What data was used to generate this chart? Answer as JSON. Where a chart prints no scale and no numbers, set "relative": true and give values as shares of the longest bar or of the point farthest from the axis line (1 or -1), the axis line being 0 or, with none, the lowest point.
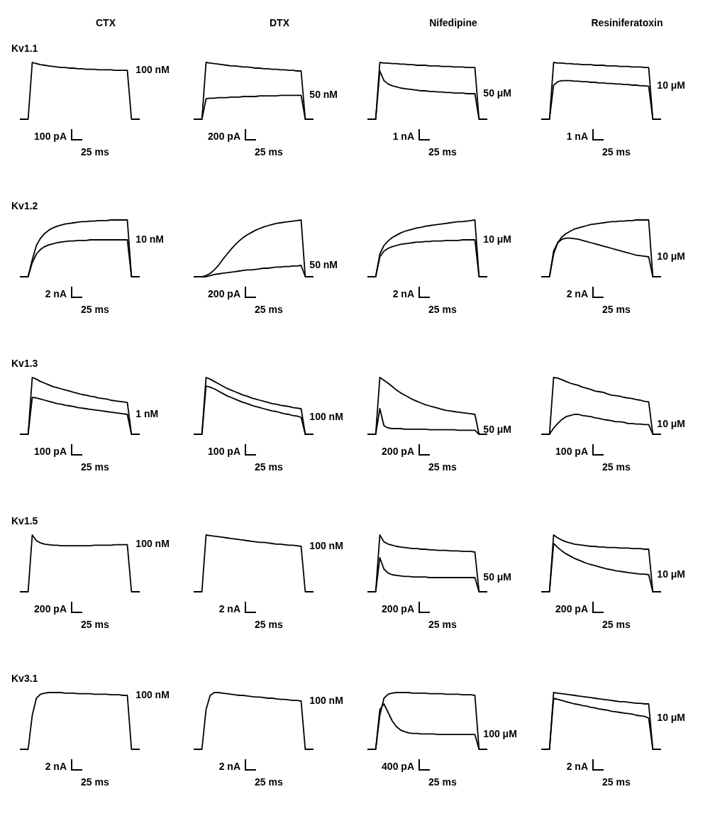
{
  "chart_data": [
    {
      "type": "line",
      "relative": true,
      "title": "CTX",
      "categories": [
        null,
        null,
        null,
        null,
        null,
        null,
        null,
        null,
        null,
        null,
        null,
        null,
        null,
        null,
        null,
        null,
        null,
        null,
        null,
        null,
        null,
        null,
        null,
        null,
        null,
        null,
        null,
        null,
        null,
        null
      ],
      "series": [
        {
          "name": "100 nM",
          "color": "#000000",
          "values": [
            0,
            0,
            0,
            1,
            0.98,
            0.96,
            0.95,
            0.94,
            0.93,
            0.92,
            0.91,
            0.91,
            0.9,
            0.9,
            0.89,
            0.89,
            0.88,
            0.88,
            0.88,
            0.87,
            0.87,
            0.87,
            0.87,
            0.86,
            0.86,
            0.86,
            0.86,
            0,
            0,
            0
          ]
        }
      ],
      "annotations": [
        "Kv1.1",
        "100 pA",
        "25 ms"
      ]
    },
    {
      "type": "line",
      "relative": true,
      "title": "DTX",
      "categories": [
        null,
        null,
        null,
        null,
        null,
        null,
        null,
        null,
        null,
        null,
        null,
        null,
        null,
        null,
        null,
        null,
        null,
        null,
        null,
        null,
        null,
        null,
        null,
        null,
        null,
        null,
        null,
        null,
        null,
        null
      ],
      "series": [
        {
          "color": "#000000",
          "values": [
            0,
            0,
            0,
            1,
            0.99,
            0.98,
            0.97,
            0.96,
            0.95,
            0.94,
            0.94,
            0.93,
            0.92,
            0.92,
            0.91,
            0.9,
            0.9,
            0.89,
            0.89,
            0.88,
            0.88,
            0.87,
            0.87,
            0.86,
            0.86,
            0.85,
            0.85,
            0,
            0,
            0
          ]
        },
        {
          "name": "50 nM",
          "color": "#000000",
          "values": [
            0,
            0,
            0,
            0.36,
            0.37,
            0.37,
            0.38,
            0.38,
            0.38,
            0.39,
            0.39,
            0.39,
            0.4,
            0.4,
            0.4,
            0.4,
            0.41,
            0.41,
            0.41,
            0.41,
            0.41,
            0.42,
            0.42,
            0.42,
            0.42,
            0.42,
            0.42,
            0,
            0,
            0
          ]
        }
      ],
      "annotations": [
        "200 pA",
        "25 ms"
      ]
    },
    {
      "type": "line",
      "relative": true,
      "title": "Nifedipine",
      "categories": [
        null,
        null,
        null,
        null,
        null,
        null,
        null,
        null,
        null,
        null,
        null,
        null,
        null,
        null,
        null,
        null,
        null,
        null,
        null,
        null,
        null,
        null,
        null,
        null,
        null,
        null,
        null,
        null,
        null,
        null
      ],
      "series": [
        {
          "color": "#000000",
          "values": [
            0,
            0,
            0,
            1,
            0.99,
            0.99,
            0.98,
            0.98,
            0.97,
            0.97,
            0.96,
            0.96,
            0.95,
            0.95,
            0.95,
            0.94,
            0.94,
            0.94,
            0.93,
            0.93,
            0.93,
            0.92,
            0.92,
            0.92,
            0.91,
            0.91,
            0.91,
            0,
            0,
            0
          ]
        },
        {
          "name": "50 μM",
          "color": "#000000",
          "values": [
            0,
            0,
            0,
            0.85,
            0.68,
            0.62,
            0.59,
            0.57,
            0.55,
            0.54,
            0.53,
            0.52,
            0.51,
            0.5,
            0.5,
            0.49,
            0.49,
            0.48,
            0.48,
            0.47,
            0.47,
            0.46,
            0.46,
            0.46,
            0.45,
            0.45,
            0.45,
            0,
            0,
            0
          ]
        }
      ],
      "annotations": [
        "1 nA",
        "25 ms"
      ]
    },
    {
      "type": "line",
      "relative": true,
      "title": "Resiniferatoxin",
      "categories": [
        null,
        null,
        null,
        null,
        null,
        null,
        null,
        null,
        null,
        null,
        null,
        null,
        null,
        null,
        null,
        null,
        null,
        null,
        null,
        null,
        null,
        null,
        null,
        null,
        null,
        null,
        null,
        null,
        null,
        null
      ],
      "series": [
        {
          "color": "#000000",
          "values": [
            0,
            0,
            0,
            1,
            0.99,
            0.99,
            0.98,
            0.98,
            0.97,
            0.97,
            0.96,
            0.96,
            0.96,
            0.95,
            0.95,
            0.95,
            0.94,
            0.94,
            0.94,
            0.93,
            0.93,
            0.93,
            0.92,
            0.92,
            0.92,
            0.91,
            0.91,
            0,
            0,
            0
          ]
        },
        {
          "name": "10 μM",
          "color": "#000000",
          "values": [
            0,
            0,
            0,
            0.6,
            0.66,
            0.68,
            0.68,
            0.68,
            0.67,
            0.67,
            0.66,
            0.66,
            0.65,
            0.65,
            0.64,
            0.64,
            0.63,
            0.63,
            0.62,
            0.62,
            0.61,
            0.61,
            0.6,
            0.6,
            0.59,
            0.59,
            0.58,
            0,
            0,
            0
          ]
        }
      ],
      "annotations": [
        "1 nA",
        "25 ms"
      ]
    },
    {
      "type": "line",
      "relative": true,
      "categories": [
        null,
        null,
        null,
        null,
        null,
        null,
        null,
        null,
        null,
        null,
        null,
        null,
        null,
        null,
        null,
        null,
        null,
        null,
        null,
        null,
        null,
        null,
        null,
        null,
        null,
        null,
        null,
        null,
        null,
        null
      ],
      "series": [
        {
          "color": "#000000",
          "values": [
            0,
            0,
            0,
            0.3,
            0.55,
            0.68,
            0.76,
            0.82,
            0.86,
            0.89,
            0.91,
            0.93,
            0.94,
            0.95,
            0.96,
            0.97,
            0.97,
            0.98,
            0.98,
            0.99,
            0.99,
            0.99,
            1,
            1,
            1,
            1,
            1,
            0,
            0,
            0
          ]
        },
        {
          "name": "10 nM",
          "color": "#000000",
          "values": [
            0,
            0,
            0,
            0.25,
            0.4,
            0.48,
            0.53,
            0.56,
            0.58,
            0.6,
            0.61,
            0.62,
            0.63,
            0.63,
            0.64,
            0.64,
            0.64,
            0.65,
            0.65,
            0.65,
            0.65,
            0.65,
            0.65,
            0.65,
            0.65,
            0.65,
            0.65,
            0,
            0,
            0
          ]
        }
      ],
      "annotations": [
        "Kv1.2",
        "2 nA",
        "25 ms"
      ]
    },
    {
      "type": "line",
      "relative": true,
      "categories": [
        null,
        null,
        null,
        null,
        null,
        null,
        null,
        null,
        null,
        null,
        null,
        null,
        null,
        null,
        null,
        null,
        null,
        null,
        null,
        null,
        null,
        null,
        null,
        null,
        null,
        null,
        null,
        null,
        null,
        null
      ],
      "series": [
        {
          "color": "#000000",
          "values": [
            0,
            0,
            0,
            0.02,
            0.06,
            0.12,
            0.2,
            0.3,
            0.39,
            0.48,
            0.56,
            0.63,
            0.69,
            0.74,
            0.78,
            0.82,
            0.85,
            0.88,
            0.9,
            0.92,
            0.94,
            0.95,
            0.96,
            0.97,
            0.98,
            0.99,
            1,
            0,
            0,
            0
          ]
        },
        {
          "name": "50 nM",
          "color": "#000000",
          "values": [
            0,
            0,
            0,
            0,
            0.02,
            0.04,
            0.05,
            0.06,
            0.07,
            0.08,
            0.09,
            0.1,
            0.11,
            0.12,
            0.12,
            0.13,
            0.14,
            0.15,
            0.15,
            0.16,
            0.17,
            0.17,
            0.18,
            0.18,
            0.19,
            0.19,
            0.2,
            0,
            0,
            0
          ]
        }
      ],
      "annotations": [
        "200 pA",
        "25 ms"
      ]
    },
    {
      "type": "line",
      "relative": true,
      "categories": [
        null,
        null,
        null,
        null,
        null,
        null,
        null,
        null,
        null,
        null,
        null,
        null,
        null,
        null,
        null,
        null,
        null,
        null,
        null,
        null,
        null,
        null,
        null,
        null,
        null,
        null,
        null,
        null,
        null,
        null
      ],
      "series": [
        {
          "color": "#000000",
          "values": [
            0,
            0,
            0,
            0.4,
            0.55,
            0.63,
            0.69,
            0.73,
            0.77,
            0.8,
            0.82,
            0.84,
            0.86,
            0.87,
            0.89,
            0.9,
            0.91,
            0.92,
            0.93,
            0.94,
            0.95,
            0.96,
            0.97,
            0.97,
            0.98,
            0.99,
            1,
            0,
            0,
            0
          ]
        },
        {
          "name": "10 μM",
          "color": "#000000",
          "values": [
            0,
            0,
            0,
            0.35,
            0.45,
            0.5,
            0.53,
            0.55,
            0.57,
            0.58,
            0.59,
            0.6,
            0.61,
            0.61,
            0.62,
            0.62,
            0.63,
            0.63,
            0.63,
            0.64,
            0.64,
            0.64,
            0.64,
            0.65,
            0.65,
            0.65,
            0.65,
            0,
            0,
            0
          ]
        }
      ],
      "annotations": [
        "2 nA",
        "25 ms"
      ]
    },
    {
      "type": "line",
      "relative": true,
      "categories": [
        null,
        null,
        null,
        null,
        null,
        null,
        null,
        null,
        null,
        null,
        null,
        null,
        null,
        null,
        null,
        null,
        null,
        null,
        null,
        null,
        null,
        null,
        null,
        null,
        null,
        null,
        null,
        null,
        null,
        null
      ],
      "series": [
        {
          "color": "#000000",
          "values": [
            0,
            0,
            0,
            0.4,
            0.6,
            0.7,
            0.76,
            0.8,
            0.84,
            0.86,
            0.88,
            0.9,
            0.92,
            0.93,
            0.94,
            0.95,
            0.96,
            0.97,
            0.97,
            0.98,
            0.98,
            0.99,
            0.99,
            1,
            1,
            1,
            1,
            0,
            0,
            0
          ]
        },
        {
          "name": "10 μM",
          "color": "#000000",
          "values": [
            0,
            0,
            0,
            0.45,
            0.6,
            0.66,
            0.68,
            0.68,
            0.67,
            0.66,
            0.64,
            0.62,
            0.6,
            0.58,
            0.56,
            0.54,
            0.52,
            0.5,
            0.48,
            0.46,
            0.44,
            0.42,
            0.4,
            0.38,
            0.37,
            0.36,
            0.35,
            0,
            0,
            0
          ]
        }
      ],
      "annotations": [
        "2 nA",
        "25 ms"
      ]
    },
    {
      "type": "line",
      "relative": true,
      "categories": [
        null,
        null,
        null,
        null,
        null,
        null,
        null,
        null,
        null,
        null,
        null,
        null,
        null,
        null,
        null,
        null,
        null,
        null,
        null,
        null,
        null,
        null,
        null,
        null,
        null,
        null,
        null,
        null,
        null,
        null
      ],
      "series": [
        {
          "color": "#000000",
          "values": [
            0,
            0,
            0,
            1,
            0.97,
            0.93,
            0.9,
            0.87,
            0.84,
            0.82,
            0.8,
            0.78,
            0.76,
            0.74,
            0.72,
            0.7,
            0.69,
            0.67,
            0.66,
            0.64,
            0.63,
            0.62,
            0.6,
            0.59,
            0.58,
            0.57,
            0.56,
            0,
            0,
            0
          ]
        },
        {
          "name": "1 nM",
          "color": "#000000",
          "values": [
            0,
            0,
            0,
            0.65,
            0.64,
            0.62,
            0.6,
            0.58,
            0.56,
            0.54,
            0.53,
            0.51,
            0.5,
            0.49,
            0.47,
            0.46,
            0.45,
            0.44,
            0.43,
            0.42,
            0.41,
            0.4,
            0.39,
            0.38,
            0.37,
            0.36,
            0.35,
            0,
            0,
            0
          ]
        }
      ],
      "annotations": [
        "Kv1.3",
        "100 pA",
        "25 ms"
      ]
    },
    {
      "type": "line",
      "relative": true,
      "categories": [
        null,
        null,
        null,
        null,
        null,
        null,
        null,
        null,
        null,
        null,
        null,
        null,
        null,
        null,
        null,
        null,
        null,
        null,
        null,
        null,
        null,
        null,
        null,
        null,
        null,
        null,
        null,
        null,
        null,
        null
      ],
      "series": [
        {
          "color": "#000000",
          "values": [
            0,
            0,
            0,
            1,
            0.97,
            0.93,
            0.89,
            0.85,
            0.81,
            0.78,
            0.75,
            0.72,
            0.69,
            0.67,
            0.64,
            0.62,
            0.6,
            0.58,
            0.56,
            0.54,
            0.53,
            0.51,
            0.5,
            0.49,
            0.47,
            0.46,
            0.45,
            0,
            0,
            0
          ]
        },
        {
          "name": "100 nM",
          "color": "#000000",
          "values": [
            0,
            0,
            0,
            0.85,
            0.83,
            0.8,
            0.76,
            0.72,
            0.68,
            0.65,
            0.62,
            0.59,
            0.56,
            0.54,
            0.51,
            0.49,
            0.47,
            0.45,
            0.43,
            0.41,
            0.4,
            0.38,
            0.36,
            0.35,
            0.33,
            0.32,
            0.3,
            0,
            0,
            0
          ]
        }
      ],
      "annotations": [
        "100 pA",
        "25 ms"
      ]
    },
    {
      "type": "line",
      "relative": true,
      "categories": [
        null,
        null,
        null,
        null,
        null,
        null,
        null,
        null,
        null,
        null,
        null,
        null,
        null,
        null,
        null,
        null,
        null,
        null,
        null,
        null,
        null,
        null,
        null,
        null,
        null,
        null,
        null,
        null,
        null,
        null
      ],
      "series": [
        {
          "color": "#000000",
          "values": [
            0,
            0,
            0,
            1,
            0.95,
            0.9,
            0.84,
            0.78,
            0.73,
            0.69,
            0.65,
            0.61,
            0.58,
            0.55,
            0.52,
            0.5,
            0.48,
            0.46,
            0.44,
            0.42,
            0.41,
            0.4,
            0.39,
            0.38,
            0.37,
            0.36,
            0.35,
            0,
            0,
            0
          ]
        },
        {
          "name": "50 μM",
          "color": "#000000",
          "values": [
            0,
            0,
            0,
            0.45,
            0.15,
            0.11,
            0.1,
            0.1,
            0.1,
            0.09,
            0.09,
            0.09,
            0.09,
            0.09,
            0.09,
            0.08,
            0.08,
            0.08,
            0.08,
            0.08,
            0.08,
            0.08,
            0.07,
            0.07,
            0.07,
            0.07,
            0.07,
            0,
            0,
            0
          ]
        }
      ],
      "annotations": [
        "200 pA",
        "25 ms"
      ]
    },
    {
      "type": "line",
      "relative": true,
      "categories": [
        null,
        null,
        null,
        null,
        null,
        null,
        null,
        null,
        null,
        null,
        null,
        null,
        null,
        null,
        null,
        null,
        null,
        null,
        null,
        null,
        null,
        null,
        null,
        null,
        null,
        null,
        null,
        null,
        null,
        null
      ],
      "series": [
        {
          "color": "#000000",
          "values": [
            0,
            0,
            0,
            1,
            0.99,
            0.96,
            0.93,
            0.9,
            0.88,
            0.86,
            0.83,
            0.81,
            0.79,
            0.76,
            0.75,
            0.74,
            0.71,
            0.69,
            0.68,
            0.67,
            0.65,
            0.64,
            0.63,
            0.61,
            0.6,
            0.58,
            0.57,
            0,
            0,
            0
          ]
        },
        {
          "name": "10 μM",
          "color": "#000000",
          "values": [
            0,
            0,
            0,
            0.11,
            0.19,
            0.26,
            0.31,
            0.33,
            0.35,
            0.35,
            0.33,
            0.32,
            0.31,
            0.29,
            0.28,
            0.26,
            0.25,
            0.24,
            0.22,
            0.22,
            0.21,
            0.19,
            0.19,
            0.18,
            0.18,
            0.17,
            0.17,
            0,
            0,
            0
          ]
        }
      ],
      "annotations": [
        "100 pA",
        "25 ms"
      ]
    },
    {
      "type": "line",
      "relative": true,
      "categories": [
        null,
        null,
        null,
        null,
        null,
        null,
        null,
        null,
        null,
        null,
        null,
        null,
        null,
        null,
        null,
        null,
        null,
        null,
        null,
        null,
        null,
        null,
        null,
        null,
        null,
        null,
        null,
        null,
        null,
        null
      ],
      "series": [
        {
          "name": "100 nM",
          "color": "#000000",
          "values": [
            0,
            0,
            0,
            1,
            0.9,
            0.86,
            0.84,
            0.83,
            0.82,
            0.82,
            0.81,
            0.81,
            0.81,
            0.81,
            0.81,
            0.81,
            0.81,
            0.81,
            0.82,
            0.82,
            0.82,
            0.82,
            0.82,
            0.83,
            0.83,
            0.83,
            0.83,
            0,
            0,
            0
          ]
        }
      ],
      "annotations": [
        "Kv1.5",
        "200 pA",
        "25 ms"
      ]
    },
    {
      "type": "line",
      "relative": true,
      "categories": [
        null,
        null,
        null,
        null,
        null,
        null,
        null,
        null,
        null,
        null,
        null,
        null,
        null,
        null,
        null,
        null,
        null,
        null,
        null,
        null,
        null,
        null,
        null,
        null,
        null,
        null,
        null,
        null,
        null,
        null
      ],
      "series": [
        {
          "name": "100 nM",
          "color": "#000000",
          "values": [
            0,
            0,
            0,
            1,
            0.99,
            0.98,
            0.97,
            0.96,
            0.95,
            0.94,
            0.93,
            0.92,
            0.91,
            0.9,
            0.89,
            0.88,
            0.87,
            0.87,
            0.86,
            0.85,
            0.84,
            0.84,
            0.83,
            0.82,
            0.82,
            0.81,
            0.8,
            0,
            0,
            0
          ]
        }
      ],
      "annotations": [
        "2 nA",
        "25 ms"
      ]
    },
    {
      "type": "line",
      "relative": true,
      "categories": [
        null,
        null,
        null,
        null,
        null,
        null,
        null,
        null,
        null,
        null,
        null,
        null,
        null,
        null,
        null,
        null,
        null,
        null,
        null,
        null,
        null,
        null,
        null,
        null,
        null,
        null,
        null,
        null,
        null,
        null
      ],
      "series": [
        {
          "color": "#000000",
          "values": [
            0,
            0,
            0,
            1,
            0.88,
            0.84,
            0.82,
            0.8,
            0.79,
            0.78,
            0.77,
            0.76,
            0.76,
            0.75,
            0.75,
            0.74,
            0.74,
            0.73,
            0.73,
            0.73,
            0.72,
            0.72,
            0.72,
            0.71,
            0.71,
            0.71,
            0.7,
            0,
            0,
            0
          ]
        },
        {
          "name": "50 μM",
          "color": "#000000",
          "values": [
            0,
            0,
            0,
            0.6,
            0.4,
            0.33,
            0.3,
            0.29,
            0.28,
            0.27,
            0.27,
            0.26,
            0.26,
            0.26,
            0.26,
            0.25,
            0.25,
            0.25,
            0.25,
            0.25,
            0.25,
            0.25,
            0.25,
            0.25,
            0.25,
            0.25,
            0.25,
            0,
            0,
            0
          ]
        }
      ],
      "annotations": [
        "200 pA",
        "25 ms"
      ]
    },
    {
      "type": "line",
      "relative": true,
      "categories": [
        null,
        null,
        null,
        null,
        null,
        null,
        null,
        null,
        null,
        null,
        null,
        null,
        null,
        null,
        null,
        null,
        null,
        null,
        null,
        null,
        null,
        null,
        null,
        null,
        null,
        null,
        null,
        null,
        null,
        null
      ],
      "series": [
        {
          "color": "#000000",
          "values": [
            0,
            0,
            0,
            1,
            0.95,
            0.91,
            0.88,
            0.86,
            0.84,
            0.83,
            0.82,
            0.81,
            0.8,
            0.8,
            0.79,
            0.79,
            0.78,
            0.78,
            0.78,
            0.77,
            0.77,
            0.77,
            0.76,
            0.76,
            0.76,
            0.75,
            0.75,
            0,
            0,
            0
          ]
        },
        {
          "name": "10 μM",
          "color": "#000000",
          "values": [
            0,
            0,
            0,
            0.85,
            0.78,
            0.72,
            0.67,
            0.63,
            0.59,
            0.56,
            0.53,
            0.5,
            0.48,
            0.46,
            0.44,
            0.42,
            0.4,
            0.39,
            0.37,
            0.36,
            0.35,
            0.34,
            0.33,
            0.32,
            0.31,
            0.31,
            0.3,
            0,
            0,
            0
          ]
        }
      ],
      "annotations": [
        "200 pA",
        "25 ms"
      ]
    },
    {
      "type": "line",
      "relative": true,
      "categories": [
        null,
        null,
        null,
        null,
        null,
        null,
        null,
        null,
        null,
        null,
        null,
        null,
        null,
        null,
        null,
        null,
        null,
        null,
        null,
        null,
        null,
        null,
        null,
        null,
        null,
        null,
        null,
        null,
        null,
        null
      ],
      "series": [
        {
          "name": "100 nM",
          "color": "#000000",
          "values": [
            0,
            0,
            0,
            0.6,
            0.9,
            0.97,
            0.99,
            1,
            1,
            1,
            1,
            0.99,
            0.99,
            0.99,
            0.98,
            0.98,
            0.98,
            0.98,
            0.97,
            0.97,
            0.97,
            0.97,
            0.96,
            0.96,
            0.96,
            0.95,
            0.95,
            0,
            0,
            0
          ]
        }
      ],
      "annotations": [
        "Kv3.1",
        "2 nA",
        "25 ms"
      ]
    },
    {
      "type": "line",
      "relative": true,
      "categories": [
        null,
        null,
        null,
        null,
        null,
        null,
        null,
        null,
        null,
        null,
        null,
        null,
        null,
        null,
        null,
        null,
        null,
        null,
        null,
        null,
        null,
        null,
        null,
        null,
        null,
        null,
        null,
        null,
        null,
        null
      ],
      "series": [
        {
          "name": "100 nM",
          "color": "#000000",
          "values": [
            0,
            0,
            0,
            0.7,
            0.95,
            1,
            1,
            0.99,
            0.98,
            0.97,
            0.96,
            0.95,
            0.95,
            0.94,
            0.93,
            0.92,
            0.92,
            0.91,
            0.9,
            0.9,
            0.89,
            0.88,
            0.88,
            0.87,
            0.86,
            0.86,
            0.85,
            0,
            0,
            0
          ]
        }
      ],
      "annotations": [
        "2 nA",
        "25 ms"
      ]
    },
    {
      "type": "line",
      "relative": true,
      "categories": [
        null,
        null,
        null,
        null,
        null,
        null,
        null,
        null,
        null,
        null,
        null,
        null,
        null,
        null,
        null,
        null,
        null,
        null,
        null,
        null,
        null,
        null,
        null,
        null,
        null,
        null,
        null,
        null,
        null,
        null
      ],
      "series": [
        {
          "color": "#000000",
          "values": [
            0,
            0,
            0,
            0.6,
            0.9,
            0.97,
            0.99,
            1,
            1,
            1,
            1,
            0.99,
            0.99,
            0.99,
            0.99,
            0.98,
            0.98,
            0.98,
            0.98,
            0.97,
            0.97,
            0.97,
            0.97,
            0.96,
            0.96,
            0.96,
            0.95,
            0,
            0,
            0
          ]
        },
        {
          "name": "100 μM",
          "color": "#000000",
          "values": [
            0,
            0,
            0,
            0.7,
            0.8,
            0.65,
            0.5,
            0.4,
            0.34,
            0.31,
            0.29,
            0.28,
            0.28,
            0.27,
            0.27,
            0.27,
            0.27,
            0.26,
            0.26,
            0.26,
            0.26,
            0.26,
            0.26,
            0.26,
            0.26,
            0.26,
            0.26,
            0,
            0,
            0
          ]
        }
      ],
      "annotations": [
        "400 pA",
        "25 ms"
      ]
    },
    {
      "type": "line",
      "relative": true,
      "categories": [
        null,
        null,
        null,
        null,
        null,
        null,
        null,
        null,
        null,
        null,
        null,
        null,
        null,
        null,
        null,
        null,
        null,
        null,
        null,
        null,
        null,
        null,
        null,
        null,
        null,
        null,
        null,
        null,
        null,
        null
      ],
      "series": [
        {
          "color": "#000000",
          "values": [
            0,
            0,
            0,
            1,
            0.99,
            0.98,
            0.97,
            0.96,
            0.95,
            0.94,
            0.93,
            0.92,
            0.91,
            0.9,
            0.89,
            0.88,
            0.87,
            0.86,
            0.85,
            0.84,
            0.84,
            0.83,
            0.82,
            0.81,
            0.81,
            0.8,
            0.8,
            0,
            0,
            0
          ]
        },
        {
          "name": "10 μM",
          "color": "#000000",
          "values": [
            0,
            0,
            0,
            0.9,
            0.88,
            0.86,
            0.84,
            0.82,
            0.8,
            0.79,
            0.77,
            0.76,
            0.74,
            0.73,
            0.71,
            0.7,
            0.69,
            0.67,
            0.66,
            0.65,
            0.64,
            0.63,
            0.62,
            0.6,
            0.59,
            0.58,
            0.55,
            0,
            0,
            0
          ]
        }
      ],
      "annotations": [
        "2 nA",
        "25 ms"
      ]
    }
  ]
}
